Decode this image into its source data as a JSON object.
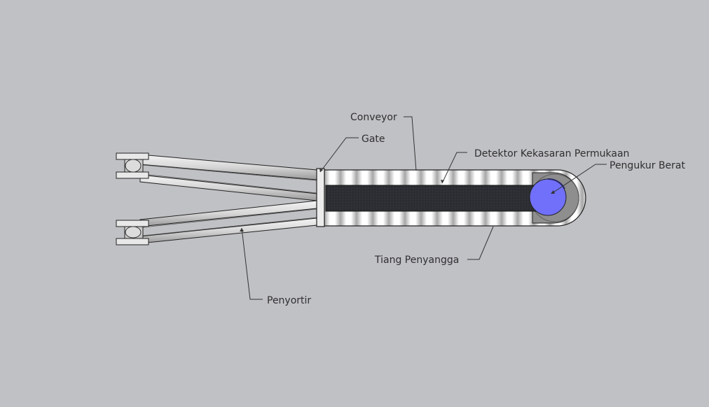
{
  "diagram": {
    "background": "#c0c1c5",
    "belt_color": "#2c2e33",
    "weigher_color": "#7070fa",
    "labels": {
      "conveyor": "Conveyor",
      "gate": "Gate",
      "surface_detector": "Detektor Kekasaran Permukaan",
      "weigher": "Pengukur Berat",
      "support_pole": "Tiang Penyangga",
      "sorter": "Penyortir"
    }
  }
}
